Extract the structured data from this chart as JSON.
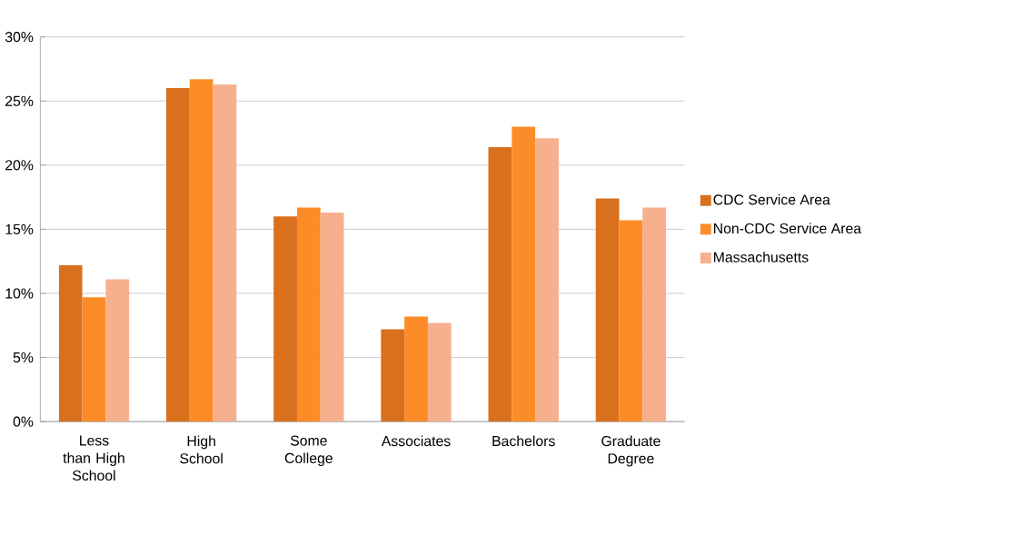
{
  "chart_data": {
    "type": "bar",
    "categories": [
      "Less than High School",
      "High School",
      "Some College",
      "Associates",
      "Bachelors",
      "Graduate Degree"
    ],
    "series": [
      {
        "name": "CDC Service Area",
        "color": "#d9701e",
        "values": [
          12.2,
          26.0,
          16.0,
          7.2,
          21.4,
          17.4
        ]
      },
      {
        "name": "Non-CDC Service Area",
        "color": "#fb8c28",
        "values": [
          9.7,
          26.7,
          16.7,
          8.2,
          23.0,
          15.7
        ]
      },
      {
        "name": "Massachusetts",
        "color": "#f6b08e",
        "values": [
          11.1,
          26.3,
          16.3,
          7.7,
          22.1,
          16.7
        ]
      }
    ],
    "ylim": [
      0,
      30
    ],
    "yticks": [
      {
        "value": 0,
        "label": "0%"
      },
      {
        "value": 5,
        "label": "5%"
      },
      {
        "value": 10,
        "label": "10%"
      },
      {
        "value": 15,
        "label": "15%"
      },
      {
        "value": 20,
        "label": "20%"
      },
      {
        "value": 25,
        "label": "25%"
      },
      {
        "value": 30,
        "label": "30%"
      }
    ],
    "grid": "y",
    "legend": "right"
  }
}
